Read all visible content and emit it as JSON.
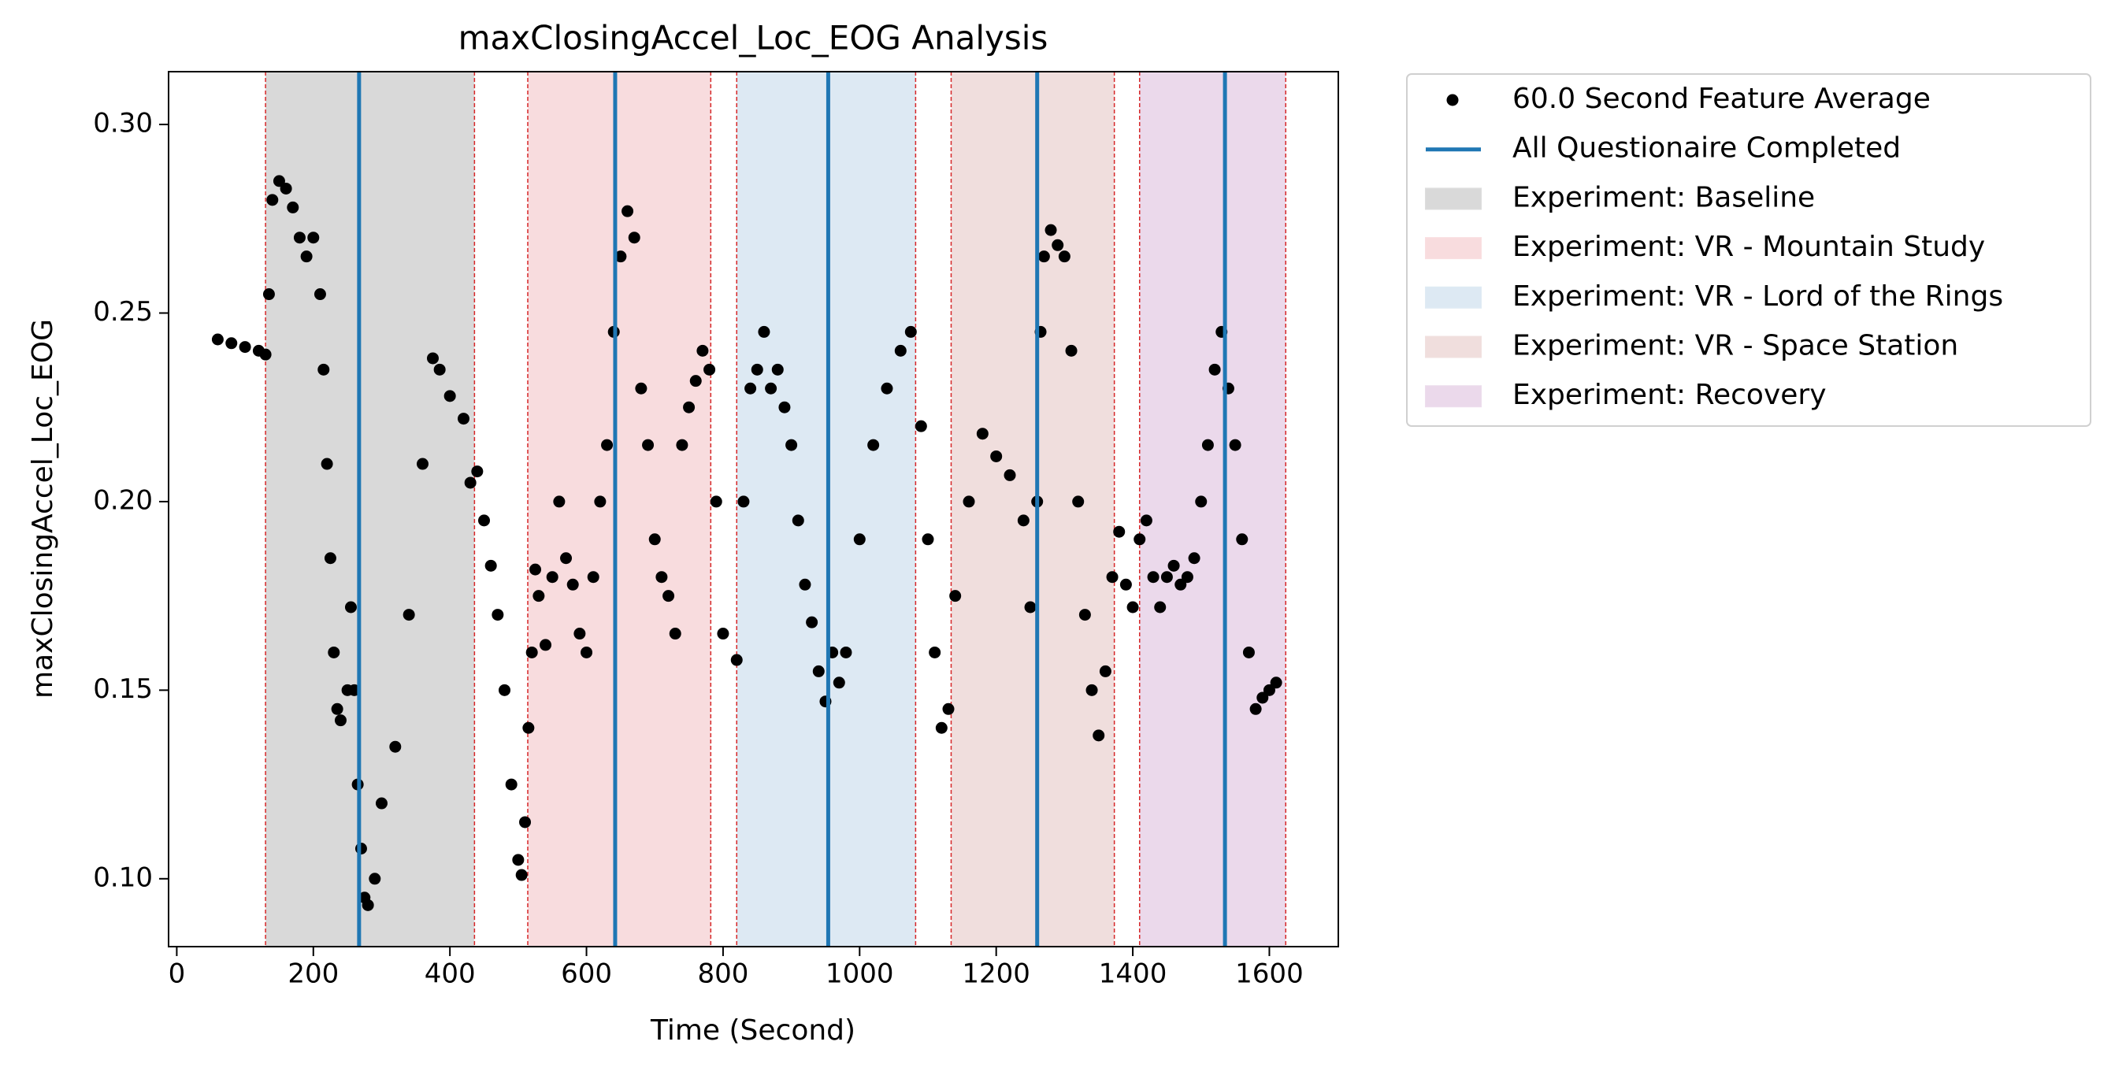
{
  "chart_data": {
    "type": "scatter",
    "title": "maxClosingAccel_Loc_EOG Analysis",
    "xlabel": "Time (Second)",
    "ylabel": "maxClosingAccel_Loc_EOG",
    "xlim": [
      -12,
      1701
    ],
    "ylim": [
      0.082,
      0.314
    ],
    "xticks": [
      0,
      200,
      400,
      600,
      800,
      1000,
      1200,
      1400,
      1600
    ],
    "yticks": [
      {
        "value": 0.1,
        "label": "0.10"
      },
      0.15,
      {
        "value": 0.2,
        "label": "0.20"
      },
      0.25,
      {
        "value": 0.3,
        "label": "0.30"
      }
    ],
    "series": [
      {
        "name": "60.0 Second Feature Average",
        "color": "#000000",
        "x": [
          60,
          80,
          100,
          120,
          130,
          135,
          140,
          150,
          160,
          170,
          180,
          190,
          200,
          210,
          215,
          220,
          225,
          230,
          235,
          240,
          250,
          255,
          260,
          265,
          270,
          275,
          280,
          290,
          300,
          320,
          340,
          360,
          375,
          385,
          400,
          420,
          430,
          440,
          450,
          460,
          470,
          480,
          490,
          500,
          505,
          510,
          515,
          520,
          525,
          530,
          540,
          550,
          560,
          570,
          580,
          590,
          600,
          610,
          620,
          630,
          640,
          650,
          660,
          670,
          680,
          690,
          700,
          710,
          720,
          730,
          740,
          750,
          760,
          770,
          780,
          790,
          800,
          820,
          830,
          840,
          850,
          860,
          870,
          880,
          890,
          900,
          910,
          920,
          930,
          940,
          950,
          960,
          970,
          980,
          1000,
          1020,
          1040,
          1060,
          1075,
          1090,
          1100,
          1110,
          1120,
          1130,
          1140,
          1160,
          1180,
          1200,
          1220,
          1240,
          1250,
          1260,
          1265,
          1270,
          1280,
          1290,
          1300,
          1310,
          1320,
          1330,
          1340,
          1350,
          1360,
          1370,
          1380,
          1390,
          1400,
          1410,
          1420,
          1430,
          1440,
          1450,
          1460,
          1470,
          1480,
          1490,
          1500,
          1510,
          1520,
          1530,
          1540,
          1550,
          1560,
          1570,
          1580,
          1590,
          1600,
          1610
        ],
        "values": [
          0.243,
          0.242,
          0.241,
          0.24,
          0.239,
          0.255,
          0.28,
          0.285,
          0.283,
          0.278,
          0.27,
          0.265,
          0.27,
          0.255,
          0.235,
          0.21,
          0.185,
          0.16,
          0.145,
          0.142,
          0.15,
          0.172,
          0.15,
          0.125,
          0.108,
          0.095,
          0.093,
          0.1,
          0.12,
          0.135,
          0.17,
          0.21,
          0.238,
          0.235,
          0.228,
          0.222,
          0.205,
          0.208,
          0.195,
          0.183,
          0.17,
          0.15,
          0.125,
          0.105,
          0.101,
          0.115,
          0.14,
          0.16,
          0.182,
          0.175,
          0.162,
          0.18,
          0.2,
          0.185,
          0.178,
          0.165,
          0.16,
          0.18,
          0.2,
          0.215,
          0.245,
          0.265,
          0.277,
          0.27,
          0.23,
          0.215,
          0.19,
          0.18,
          0.175,
          0.165,
          0.215,
          0.225,
          0.232,
          0.24,
          0.235,
          0.2,
          0.165,
          0.158,
          0.2,
          0.23,
          0.235,
          0.245,
          0.23,
          0.235,
          0.225,
          0.215,
          0.195,
          0.178,
          0.168,
          0.155,
          0.147,
          0.16,
          0.152,
          0.16,
          0.19,
          0.215,
          0.23,
          0.24,
          0.245,
          0.22,
          0.19,
          0.16,
          0.14,
          0.145,
          0.175,
          0.2,
          0.218,
          0.212,
          0.207,
          0.195,
          0.172,
          0.2,
          0.245,
          0.265,
          0.272,
          0.268,
          0.265,
          0.24,
          0.2,
          0.17,
          0.15,
          0.138,
          0.155,
          0.18,
          0.192,
          0.178,
          0.172,
          0.19,
          0.195,
          0.18,
          0.172,
          0.18,
          0.183,
          0.178,
          0.18,
          0.185,
          0.2,
          0.215,
          0.235,
          0.245,
          0.23,
          0.215,
          0.19,
          0.16,
          0.145,
          0.148,
          0.15,
          0.152
        ]
      }
    ],
    "vlines": {
      "name": "All Questionaire Completed",
      "color": "#1f77b4",
      "x": [
        267,
        642,
        954,
        1260,
        1535
      ]
    },
    "spans": [
      {
        "name": "Experiment: Baseline",
        "color": "#d9d9d9",
        "start": 130,
        "end": 436
      },
      {
        "name": "Experiment: VR - Mountain Study",
        "color": "#f8dcde",
        "start": 514,
        "end": 782
      },
      {
        "name": "Experiment: VR - Lord of the Rings",
        "color": "#dde9f3",
        "start": 820,
        "end": 1082
      },
      {
        "name": "Experiment: VR - Space Station",
        "color": "#f0dedd",
        "start": 1134,
        "end": 1373
      },
      {
        "name": "Experiment: Recovery",
        "color": "#ebd9eb",
        "start": 1410,
        "end": 1624
      }
    ],
    "legend": "outside upper right"
  }
}
